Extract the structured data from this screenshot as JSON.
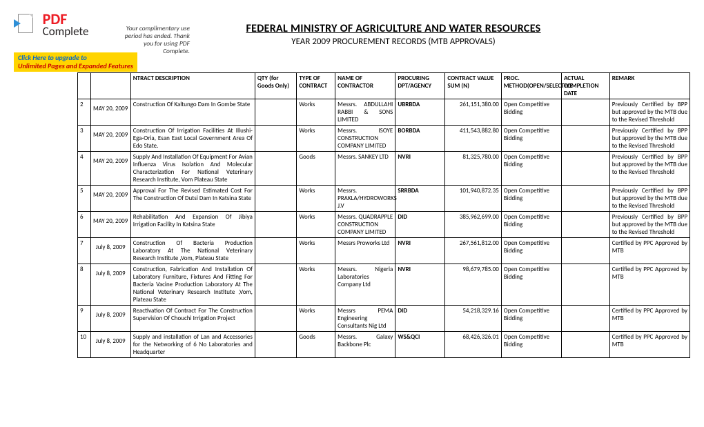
{
  "pdf_banner": {
    "logo_top": "PDF",
    "logo_bottom": "Complete",
    "tagline": "Your complimentary use period has ended. Thank you for using PDF Complete.",
    "upgrade_line1": "Click Here to upgrade to",
    "upgrade_line2": "Unlimited Pages and Expanded Features"
  },
  "title": {
    "main": "FEDERAL MINISTRY OF AGRICULTURE AND WATER RESOURCES",
    "sub": "YEAR 2009 PROCUREMENT RECORDS (MTB APPROVALS)"
  },
  "table": {
    "columns": [
      "",
      "",
      "NTRACT DESCRIPTION",
      "QTY (for Goods Only)",
      "TYPE OF CONTRACT",
      "NAME OF CONTRACTOR",
      "PROCURING DPT/AGENCY",
      "CONTRACT VALUE SUM (N)",
      "PROC. METHOD(OPEN/SELECTIVE",
      "ACTUAL COMPLETION DATE",
      "REMARK"
    ],
    "rows": [
      {
        "sn": "2",
        "date": "MAY 20, 2009",
        "desc": "Construction Of Kaltungo Dam In Gombe State",
        "qty": "",
        "type": "Works",
        "contractor": "Messrs. ABDULLAHI RABBI & SONS LIMITED",
        "agency": "UBRBDA",
        "value": "261,151,380.00",
        "method": "Open Competitive Bidding",
        "actual": "",
        "remark": "Previously Certified by BPP but approved by the MTB due to the Revised Threshold"
      },
      {
        "sn": "3",
        "date": "MAY 20, 2009",
        "desc": "Construction Of Irrigation Facilities At Illushi-Ega-Oria, Esan East Local Government Area Of Edo State.",
        "qty": "",
        "type": "Works",
        "contractor": "Messrs. ISOYE CONSTRUCTION COMPANY LIMITED",
        "agency": "BORBDA",
        "value": "411,543,882.80",
        "method": "Open Competitive Bidding",
        "actual": "",
        "remark": "Previously Certified by BPP but approved by the MTB due to the Revised Threshold"
      },
      {
        "sn": "4",
        "date": "MAY 20, 2009",
        "desc": "Supply And Installation Of Equipment For Avian Influenza Virus Isolation And Molecular Characterization For National Veterinary Research Institute, Vom Plateau State",
        "qty": "",
        "type": "Goods",
        "contractor": "Messrs. SANKEY LTD",
        "agency": "NVRI",
        "value": "81,325,780.00",
        "method": "Open Competitive Bidding",
        "actual": "",
        "remark": "Previously Certified by BPP but approved by the MTB due to the Revised Threshold"
      },
      {
        "sn": "5",
        "date": "MAY 20, 2009",
        "desc": "Approval For The Revised Estimated Cost For The Construction Of Dutsi Dam In Katsina State",
        "qty": "",
        "type": "Works",
        "contractor": "Messrs. PRAKLA/HYDROWORKS J.V",
        "agency": "SRRBDA",
        "value": "101,940,872.35",
        "method": "Open Competitive Bidding",
        "actual": "",
        "remark": "Previously Certified by BPP but approved by the MTB due to the Revised Threshold"
      },
      {
        "sn": "6",
        "date": "MAY 20, 2009",
        "desc": "Rehabilitation And Expansion Of Jibiya Irrigation Facility In Katsina State",
        "qty": "",
        "type": "Works",
        "contractor": "Messrs. QUADRAPPLE CONSTRUCTION COMPANY LIMITED",
        "agency": "DID",
        "value": "385,962,699.00",
        "method": "Open Competitive Bidding",
        "actual": "",
        "remark": "Previously Certified by BPP but approved by the MTB due to the Revised Threshold"
      },
      {
        "sn": "7",
        "date": "July 8, 2009",
        "desc": "Construction Of Bacteria Production Laboratory At The National Veterinary Research Institute ,Vom, Plateau State",
        "qty": "",
        "type": "Works",
        "contractor": "Messrs Proworks Ltd",
        "agency": "NVRI",
        "value": "267,561,812.00",
        "method": "Open Competitive Bidding",
        "actual": "",
        "remark": "Certified by PPC Approved by MTB"
      },
      {
        "sn": "8",
        "date": "July 8, 2009",
        "desc": "Construction, Fabrication And Installation Of Laboratory Furniture, Fixtures And Fitting For Bacteria Vacine Production Laboratory At The National Veterinary Research Institute ,Vom, Plateau State",
        "qty": "",
        "type": "Works",
        "contractor": "Messrs. Nigeria Laboratories Company Ltd",
        "agency": "NVRI",
        "value": "98,679,785.00",
        "method": "Open Competitive Bidding",
        "actual": "",
        "remark": "Certified by PPC Approved by MTB"
      },
      {
        "sn": "9",
        "date": "July 8, 2009",
        "desc": "Reactivation Of Contract For The Construction Supervision Of Chouchi Irrigation Project",
        "qty": "",
        "type": "Works",
        "contractor": "Messrs PEMA Engineering Consultants Nig Ltd",
        "agency": "DID",
        "value": "54,218,329.16",
        "method": "Open Competitive Bidding",
        "actual": "",
        "remark": "Certified by PPC Approved by MTB"
      },
      {
        "sn": "10",
        "date": "July 8, 2009",
        "desc": "Supply and installation of  Lan and Accessories for the Networking of 6 No Laboratories and Headquarter",
        "qty": "",
        "type": "Goods",
        "contractor": "Messrs. Galaxy Backbone Plc",
        "agency": "WS&QCI",
        "value": "68,426,326.01",
        "method": "Open Competitive Bidding",
        "actual": "",
        "remark": "Certified by PPC Approved by MTB"
      }
    ]
  }
}
